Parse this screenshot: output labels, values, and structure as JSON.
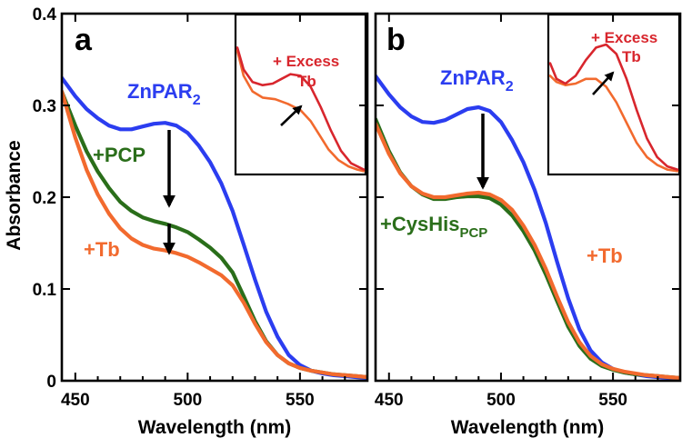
{
  "colors": {
    "znpar2": "#2b3df0",
    "pcp": "#2a6e1a",
    "tb": "#f26a2e",
    "excess_tb": "#d8262d",
    "arrow": "#000000"
  },
  "figure": {
    "ylabel": "Absorbance",
    "xlabel": "Wavelength (nm)"
  },
  "chart_data": [
    {
      "type": "line",
      "panel": "a",
      "xlabel": "Wavelength (nm)",
      "ylabel": "Absorbance",
      "xlim": [
        444,
        580
      ],
      "ylim": [
        0,
        0.4
      ],
      "xticks": [
        450,
        500,
        550
      ],
      "yticks": [
        0,
        0.1,
        0.2,
        0.3,
        0.4
      ],
      "xtick_labels": [
        "450",
        "500",
        "550"
      ],
      "ytick_labels": [
        "0",
        "0.1",
        "0.2",
        "0.3",
        "0.4"
      ],
      "series": [
        {
          "name": "ZnPAR2",
          "color": "#2b3df0",
          "x": [
            444,
            450,
            455,
            460,
            465,
            470,
            475,
            480,
            485,
            490,
            495,
            500,
            505,
            510,
            515,
            520,
            525,
            530,
            535,
            540,
            545,
            550,
            555,
            560,
            565,
            570,
            575,
            580
          ],
          "y": [
            0.33,
            0.31,
            0.296,
            0.286,
            0.278,
            0.274,
            0.274,
            0.277,
            0.28,
            0.281,
            0.278,
            0.27,
            0.256,
            0.238,
            0.215,
            0.185,
            0.148,
            0.11,
            0.075,
            0.048,
            0.028,
            0.017,
            0.011,
            0.008,
            0.006,
            0.005,
            0.004,
            0.003
          ]
        },
        {
          "name": "+PCP",
          "color": "#2a6e1a",
          "x": [
            444,
            450,
            455,
            460,
            465,
            470,
            475,
            480,
            485,
            490,
            495,
            500,
            505,
            510,
            515,
            520,
            525,
            530,
            535,
            540,
            545,
            550,
            555,
            560,
            565,
            570,
            575,
            580
          ],
          "y": [
            0.315,
            0.278,
            0.25,
            0.228,
            0.21,
            0.195,
            0.185,
            0.178,
            0.174,
            0.171,
            0.167,
            0.162,
            0.154,
            0.145,
            0.134,
            0.118,
            0.092,
            0.065,
            0.043,
            0.028,
            0.019,
            0.014,
            0.011,
            0.009,
            0.007,
            0.006,
            0.005,
            0.004
          ]
        },
        {
          "name": "+Tb",
          "color": "#f26a2e",
          "x": [
            444,
            450,
            455,
            460,
            465,
            470,
            475,
            480,
            485,
            490,
            495,
            500,
            505,
            510,
            515,
            520,
            525,
            530,
            535,
            540,
            545,
            550,
            555,
            560,
            565,
            570,
            575,
            580
          ],
          "y": [
            0.315,
            0.265,
            0.23,
            0.203,
            0.182,
            0.166,
            0.155,
            0.148,
            0.144,
            0.142,
            0.139,
            0.135,
            0.129,
            0.122,
            0.115,
            0.104,
            0.085,
            0.062,
            0.042,
            0.028,
            0.019,
            0.014,
            0.011,
            0.009,
            0.007,
            0.006,
            0.005,
            0.004
          ]
        }
      ],
      "annotations": [
        {
          "text": "ZnPAR",
          "subscript": "2",
          "color": "#2b3df0"
        },
        {
          "text": "+PCP",
          "color": "#2a6e1a"
        },
        {
          "text": "+Tb",
          "color": "#f26a2e"
        }
      ],
      "inset": {
        "label_line1": "+ Excess",
        "label_line2": "Tb",
        "series": [
          {
            "name": "+Tb",
            "color": "#f26a2e",
            "x": [
              0,
              0.05,
              0.12,
              0.2,
              0.3,
              0.4,
              0.5,
              0.58,
              0.65,
              0.72,
              0.8,
              0.88,
              0.95,
              1
            ],
            "y": [
              0.78,
              0.62,
              0.52,
              0.48,
              0.47,
              0.44,
              0.4,
              0.33,
              0.24,
              0.15,
              0.08,
              0.04,
              0.02,
              0.01
            ]
          },
          {
            "name": "+ Excess Tb",
            "color": "#d8262d",
            "x": [
              0,
              0.05,
              0.12,
              0.2,
              0.28,
              0.35,
              0.42,
              0.5,
              0.58,
              0.66,
              0.74,
              0.82,
              0.9,
              1
            ],
            "y": [
              0.8,
              0.66,
              0.58,
              0.56,
              0.57,
              0.6,
              0.63,
              0.62,
              0.55,
              0.42,
              0.27,
              0.14,
              0.06,
              0.02
            ]
          }
        ]
      }
    },
    {
      "type": "line",
      "panel": "b",
      "xlabel": "Wavelength (nm)",
      "ylabel": "Absorbance",
      "xlim": [
        444,
        580
      ],
      "ylim": [
        0,
        0.4
      ],
      "xticks": [
        450,
        500,
        550
      ],
      "yticks": [
        0,
        0.1,
        0.2,
        0.3,
        0.4
      ],
      "xtick_labels": [
        "450",
        "500",
        "550"
      ],
      "ytick_labels": [
        "0",
        "0.1",
        "0.2",
        "0.3",
        "0.4"
      ],
      "series": [
        {
          "name": "ZnPAR2",
          "color": "#2b3df0",
          "x": [
            444,
            450,
            455,
            460,
            465,
            470,
            475,
            480,
            485,
            490,
            495,
            500,
            505,
            510,
            515,
            520,
            525,
            530,
            535,
            540,
            545,
            550,
            555,
            560,
            565,
            570,
            575,
            580
          ],
          "y": [
            0.332,
            0.312,
            0.298,
            0.288,
            0.282,
            0.281,
            0.284,
            0.29,
            0.296,
            0.298,
            0.294,
            0.282,
            0.262,
            0.238,
            0.208,
            0.172,
            0.13,
            0.09,
            0.056,
            0.033,
            0.02,
            0.013,
            0.009,
            0.007,
            0.005,
            0.004,
            0.003,
            0.002
          ]
        },
        {
          "name": "+CysHisPCP",
          "color": "#2a6e1a",
          "x": [
            444,
            450,
            455,
            460,
            465,
            470,
            475,
            480,
            485,
            490,
            495,
            500,
            505,
            510,
            515,
            520,
            525,
            530,
            535,
            540,
            545,
            550,
            555,
            560,
            565,
            570,
            575,
            580
          ],
          "y": [
            0.285,
            0.25,
            0.227,
            0.212,
            0.203,
            0.198,
            0.198,
            0.2,
            0.201,
            0.201,
            0.199,
            0.192,
            0.18,
            0.163,
            0.142,
            0.116,
            0.087,
            0.059,
            0.038,
            0.024,
            0.016,
            0.012,
            0.009,
            0.007,
            0.006,
            0.005,
            0.004,
            0.003
          ]
        },
        {
          "name": "+Tb",
          "color": "#f26a2e",
          "x": [
            444,
            450,
            455,
            460,
            465,
            470,
            475,
            480,
            485,
            490,
            495,
            500,
            505,
            510,
            515,
            520,
            525,
            530,
            535,
            540,
            545,
            550,
            555,
            560,
            565,
            570,
            575,
            580
          ],
          "y": [
            0.28,
            0.247,
            0.226,
            0.212,
            0.204,
            0.2,
            0.2,
            0.202,
            0.204,
            0.205,
            0.203,
            0.197,
            0.186,
            0.169,
            0.148,
            0.122,
            0.092,
            0.064,
            0.042,
            0.027,
            0.018,
            0.013,
            0.01,
            0.008,
            0.006,
            0.005,
            0.004,
            0.003
          ]
        }
      ],
      "annotations": [
        {
          "text": "ZnPAR",
          "subscript": "2",
          "color": "#2b3df0"
        },
        {
          "text": "+CysHis",
          "subscript": "PCP",
          "color": "#2a6e1a"
        },
        {
          "text": "+Tb",
          "color": "#f26a2e"
        }
      ],
      "inset": {
        "label_line1": "+ Excess",
        "label_line2": "Tb",
        "series": [
          {
            "name": "+Tb",
            "color": "#f26a2e",
            "x": [
              0,
              0.05,
              0.12,
              0.2,
              0.28,
              0.36,
              0.44,
              0.52,
              0.6,
              0.68,
              0.76,
              0.84,
              0.92,
              1
            ],
            "y": [
              0.62,
              0.58,
              0.56,
              0.57,
              0.6,
              0.6,
              0.55,
              0.45,
              0.32,
              0.19,
              0.1,
              0.05,
              0.02,
              0.01
            ]
          },
          {
            "name": "+ Excess Tb",
            "color": "#d8262d",
            "x": [
              0,
              0.05,
              0.12,
              0.2,
              0.28,
              0.36,
              0.44,
              0.52,
              0.6,
              0.68,
              0.76,
              0.84,
              0.92,
              1
            ],
            "y": [
              0.7,
              0.6,
              0.57,
              0.62,
              0.72,
              0.8,
              0.82,
              0.76,
              0.6,
              0.4,
              0.22,
              0.1,
              0.04,
              0.02
            ]
          }
        ]
      }
    }
  ]
}
